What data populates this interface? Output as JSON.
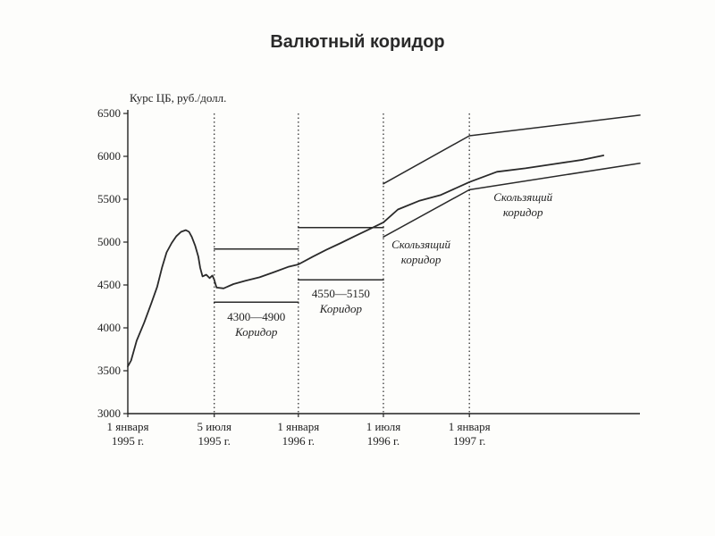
{
  "slide": {
    "title": "Валютный коридор"
  },
  "chart_data": {
    "type": "line",
    "title": "Валютный коридор",
    "ylabel": "Курс ЦБ, руб./долл.",
    "xlabel": "",
    "ylim": [
      3000,
      6500
    ],
    "yticks": [
      3000,
      3500,
      4000,
      4500,
      5000,
      5500,
      6000,
      6500
    ],
    "xlim": [
      "1995-01-01",
      "1998-01-01"
    ],
    "xticks": [
      {
        "date": "1995-01-01",
        "label_top": "1 января",
        "label_bottom": "1995 г."
      },
      {
        "date": "1995-07-05",
        "label_top": "5 июля",
        "label_bottom": "1995 г."
      },
      {
        "date": "1996-01-01",
        "label_top": "1 января",
        "label_bottom": "1996 г."
      },
      {
        "date": "1996-07-01",
        "label_top": "1 июля",
        "label_bottom": "1996 г."
      },
      {
        "date": "1997-01-01",
        "label_top": "1 января",
        "label_bottom": "1997 г."
      }
    ],
    "regime_boundaries": [
      "1995-07-05",
      "1996-01-01",
      "1996-07-01",
      "1997-01-01"
    ],
    "grid": false,
    "series": [
      {
        "role": "exchange_rate",
        "points": [
          [
            "1995-01-01",
            3550
          ],
          [
            "1995-01-08",
            3620
          ],
          [
            "1995-01-20",
            3850
          ],
          [
            "1995-02-05",
            4060
          ],
          [
            "1995-02-20",
            4280
          ],
          [
            "1995-03-05",
            4480
          ],
          [
            "1995-03-15",
            4700
          ],
          [
            "1995-03-25",
            4880
          ],
          [
            "1995-04-05",
            4990
          ],
          [
            "1995-04-15",
            5070
          ],
          [
            "1995-04-25",
            5120
          ],
          [
            "1995-05-05",
            5140
          ],
          [
            "1995-05-12",
            5120
          ],
          [
            "1995-05-18",
            5060
          ],
          [
            "1995-05-25",
            4960
          ],
          [
            "1995-06-01",
            4830
          ],
          [
            "1995-06-05",
            4700
          ],
          [
            "1995-06-10",
            4600
          ],
          [
            "1995-06-18",
            4620
          ],
          [
            "1995-06-25",
            4580
          ],
          [
            "1995-07-01",
            4610
          ],
          [
            "1995-07-05",
            4560
          ],
          [
            "1995-07-10",
            4470
          ],
          [
            "1995-07-25",
            4460
          ],
          [
            "1995-08-15",
            4510
          ],
          [
            "1995-09-10",
            4550
          ],
          [
            "1995-10-10",
            4590
          ],
          [
            "1995-11-10",
            4650
          ],
          [
            "1995-12-10",
            4710
          ],
          [
            "1996-01-01",
            4740
          ],
          [
            "1996-02-01",
            4830
          ],
          [
            "1996-03-01",
            4910
          ],
          [
            "1996-04-01",
            4990
          ],
          [
            "1996-05-01",
            5070
          ],
          [
            "1996-06-01",
            5150
          ],
          [
            "1996-07-01",
            5230
          ],
          [
            "1996-08-01",
            5380
          ],
          [
            "1996-09-15",
            5480
          ],
          [
            "1996-11-01",
            5550
          ],
          [
            "1997-01-01",
            5700
          ],
          [
            "1997-03-01",
            5820
          ],
          [
            "1997-05-01",
            5860
          ],
          [
            "1997-07-01",
            5910
          ],
          [
            "1997-09-01",
            5960
          ],
          [
            "1997-10-15",
            6010
          ]
        ]
      },
      {
        "role": "corridor_1995_upper",
        "label": "4300—4900",
        "points": [
          [
            "1995-07-05",
            4920
          ],
          [
            "1996-01-01",
            4920
          ]
        ]
      },
      {
        "role": "corridor_1995_lower",
        "label": "Коридор",
        "points": [
          [
            "1995-07-05",
            4300
          ],
          [
            "1996-01-01",
            4300
          ]
        ]
      },
      {
        "role": "corridor_1996_upper",
        "label": "4550—5150",
        "points": [
          [
            "1996-01-01",
            5170
          ],
          [
            "1996-07-01",
            5170
          ]
        ]
      },
      {
        "role": "corridor_1996_lower",
        "label": "Коридор",
        "points": [
          [
            "1996-01-01",
            4560
          ],
          [
            "1996-07-01",
            4560
          ]
        ]
      },
      {
        "role": "crawling_1996_upper",
        "label": "Скользящий коридор",
        "points": [
          [
            "1996-07-01",
            5680
          ],
          [
            "1997-01-01",
            6240
          ]
        ]
      },
      {
        "role": "crawling_1996_lower",
        "label": "Скользящий коридор",
        "points": [
          [
            "1996-07-01",
            5060
          ],
          [
            "1997-01-01",
            5610
          ]
        ]
      },
      {
        "role": "crawling_1997_upper",
        "label": "Скользящий коридор",
        "points": [
          [
            "1997-01-01",
            6240
          ],
          [
            "1998-01-01",
            6480
          ]
        ]
      },
      {
        "role": "crawling_1997_lower",
        "label": "Скользящий коридор",
        "points": [
          [
            "1997-01-01",
            5610
          ],
          [
            "1998-01-01",
            5920
          ]
        ]
      }
    ],
    "annotations": [
      {
        "id": "ann1",
        "lines": [
          "4300—4900",
          "Коридор"
        ],
        "italic": [
          false,
          true
        ]
      },
      {
        "id": "ann2",
        "lines": [
          "4550—5150",
          "Коридор"
        ],
        "italic": [
          false,
          true
        ]
      },
      {
        "id": "ann3",
        "lines": [
          "Скользящий",
          "коридор"
        ],
        "italic": [
          true,
          true
        ]
      },
      {
        "id": "ann4",
        "lines": [
          "Скользящий",
          "коридор"
        ],
        "italic": [
          true,
          true
        ]
      }
    ],
    "colors": {
      "line": "#2a2a2a",
      "axis": "#222222",
      "dotted": "#333333"
    }
  }
}
